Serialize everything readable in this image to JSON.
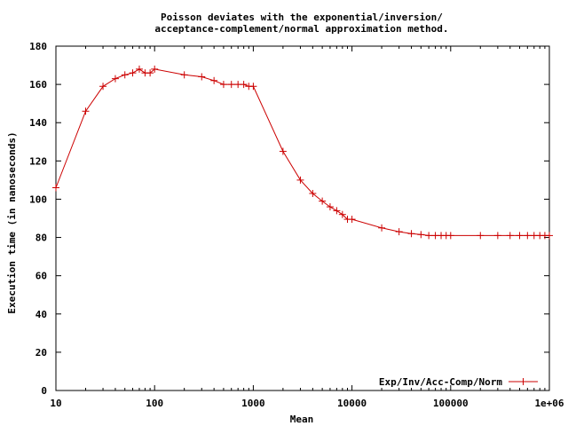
{
  "chart_data": {
    "type": "line",
    "title": "Poisson deviates with the exponential/inversion/\nacceptance-complement/normal approximation method.",
    "xlabel": "Mean",
    "ylabel": "Execution time (in nanoseconds)",
    "x_scale": "log",
    "xlim": [
      10,
      1000000
    ],
    "ylim": [
      0,
      180
    ],
    "x_ticks": [
      10,
      100,
      1000,
      10000,
      100000,
      1000000
    ],
    "x_tick_labels": [
      "10",
      "100",
      "1000",
      "10000",
      "100000",
      "1e+06"
    ],
    "y_ticks": [
      0,
      20,
      40,
      60,
      80,
      100,
      120,
      140,
      160,
      180
    ],
    "y_tick_labels": [
      "0",
      "20",
      "40",
      "60",
      "80",
      "100",
      "120",
      "140",
      "160",
      "180"
    ],
    "grid": false,
    "legend_position": "bottom-right",
    "line_color": "#cc0000",
    "series": [
      {
        "name": "Exp/Inv/Acc-Comp/Norm",
        "x": [
          10,
          20,
          30,
          40,
          50,
          60,
          70,
          80,
          90,
          100,
          200,
          300,
          400,
          500,
          600,
          700,
          800,
          900,
          1000,
          2000,
          3000,
          4000,
          5000,
          6000,
          7000,
          8000,
          9000,
          10000,
          20000,
          30000,
          40000,
          50000,
          60000,
          70000,
          80000,
          90000,
          100000,
          200000,
          300000,
          400000,
          500000,
          600000,
          700000,
          800000,
          900000,
          1000000
        ],
        "y": [
          106,
          146,
          159,
          163,
          165,
          166,
          168,
          166,
          166,
          168,
          165,
          164,
          162,
          160,
          160,
          160,
          160,
          159,
          159,
          125,
          110,
          103,
          99,
          96,
          94,
          92,
          89.5,
          89.5,
          85,
          83,
          82,
          81.5,
          81,
          81,
          81,
          81,
          81,
          81,
          81,
          81,
          81,
          81,
          81,
          81,
          81,
          81
        ]
      }
    ]
  }
}
